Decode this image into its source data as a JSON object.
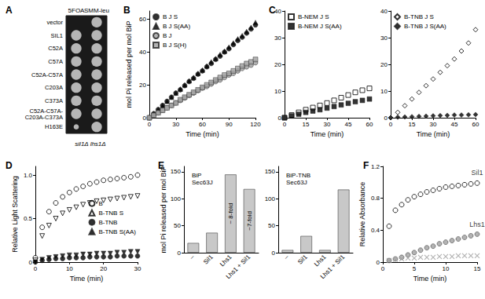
{
  "chart_data": [
    {
      "type": "heatmap",
      "title": "A",
      "x": [
        "5FOA",
        "SMM-leu"
      ],
      "categories": [
        "vector",
        "SIL1",
        "C52A",
        "C57A",
        "C52A-C57A",
        "C203A",
        "C373A",
        "C52A-C57A-\nC203A-C373A",
        "H163E"
      ],
      "cells": [
        [
          0,
          1
        ],
        [
          1,
          1
        ],
        [
          1,
          1
        ],
        [
          1,
          1
        ],
        [
          1,
          1
        ],
        [
          1,
          1
        ],
        [
          1,
          1
        ],
        [
          1,
          1
        ],
        [
          0.5,
          1
        ]
      ],
      "xlabel": "sil1Δ lhs1Δ",
      "color": "#dddddd"
    },
    {
      "type": "scatter",
      "title": "B",
      "xlabel": "Time (min)",
      "ylabel": "mol Pi released per mol BiP",
      "x": [
        0,
        5,
        10,
        15,
        20,
        25,
        30,
        35,
        40,
        45,
        50,
        55,
        60,
        65,
        70,
        75,
        80,
        85,
        90,
        95,
        100,
        105,
        110,
        115,
        120
      ],
      "xlim": [
        0,
        120
      ],
      "xticks": [
        0,
        30,
        60,
        90,
        120
      ],
      "ylim": [
        0,
        65
      ],
      "yticks": [
        0,
        20,
        40,
        60
      ],
      "legend": "upper left",
      "series": [
        {
          "name": "B J S",
          "color": "#000000",
          "marker": "circle",
          "values": [
            0,
            2.5,
            5,
            7.5,
            10,
            12.5,
            15,
            17,
            19.5,
            22,
            24,
            26.5,
            28.5,
            31,
            33,
            35.5,
            37.5,
            40,
            42,
            44.5,
            47,
            49,
            51.5,
            54,
            56.5
          ]
        },
        {
          "name": "B J S(AA)",
          "color": "#000000",
          "marker": "triangle",
          "values": [
            0,
            2.5,
            5,
            7.5,
            10,
            12.5,
            15,
            17.5,
            20,
            22.5,
            24.5,
            27,
            29,
            31.5,
            34,
            36,
            38.5,
            40.5,
            43,
            45.5,
            48,
            50,
            52.5,
            55,
            58
          ]
        },
        {
          "name": "B J",
          "color": "#a0a0a0",
          "marker": "circle",
          "values": [
            0,
            1.5,
            3,
            4.5,
            6,
            7.5,
            9,
            10.5,
            12,
            13.5,
            15,
            16.5,
            18,
            19,
            20.5,
            22,
            23,
            24.5,
            26,
            27,
            28.5,
            30,
            31,
            32,
            33.5
          ]
        },
        {
          "name": "B J S(H)",
          "color": "#a0a0a0",
          "marker": "square",
          "values": [
            0,
            1.5,
            3,
            4.5,
            6,
            7.5,
            9,
            11,
            12.5,
            14,
            15.5,
            17,
            18.5,
            20,
            21.5,
            23,
            24.5,
            26,
            27,
            28.5,
            30,
            31.5,
            33,
            34,
            35.5
          ]
        }
      ]
    },
    {
      "type": "scatter",
      "title": "C",
      "xlabel": "Time (min)",
      "x": [
        0,
        5,
        10,
        15,
        20,
        25,
        30,
        35,
        40,
        45,
        50,
        55,
        60
      ],
      "xlim": [
        0,
        60
      ],
      "xticks": [
        0,
        15,
        30,
        45,
        60
      ],
      "ylim": [
        0,
        40
      ],
      "yticks": [
        0,
        10,
        20,
        30,
        40
      ],
      "legend": "upper left",
      "series": [
        {
          "name": "B-NEM J S",
          "color": "#000000",
          "marker": "square-open",
          "values": [
            0,
            1,
            2,
            3,
            3.8,
            4.6,
            5.5,
            6.5,
            7.5,
            8.5,
            9.5,
            10.3,
            11
          ]
        },
        {
          "name": "B-NEM J S(AA)",
          "color": "#000000",
          "marker": "square",
          "values": [
            0,
            0.7,
            1.3,
            2,
            2.5,
            3,
            3.6,
            4.2,
            4.8,
            5.4,
            6,
            6.5,
            7
          ]
        }
      ]
    },
    {
      "type": "scatter",
      "xlabel": "Time (min)",
      "x": [
        0,
        5,
        10,
        15,
        20,
        25,
        30,
        35,
        40,
        45,
        50,
        55,
        60
      ],
      "xlim": [
        0,
        60
      ],
      "xticks": [
        0,
        15,
        30,
        45,
        60
      ],
      "ylim": [
        0,
        40
      ],
      "yticks": [
        0,
        10,
        20,
        30,
        40
      ],
      "legend": "upper left",
      "series": [
        {
          "name": "B-TNB J S",
          "color": "#000000",
          "marker": "diamond-open",
          "values": [
            0,
            2,
            4.5,
            7,
            9.5,
            12,
            14.5,
            17,
            19.5,
            22,
            25,
            28,
            33
          ]
        },
        {
          "name": "B-TNB J S(AA)",
          "color": "#000000",
          "marker": "diamond",
          "values": [
            0,
            0.2,
            0.3,
            0.4,
            0.5,
            0.6,
            0.7,
            0.8,
            0.9,
            1,
            1,
            1.1,
            1.2
          ]
        }
      ]
    },
    {
      "type": "scatter",
      "title": "D",
      "xlabel": "Time (min)",
      "ylabel": "Relative Light Scattering",
      "x": [
        0,
        2,
        4,
        6,
        8,
        10,
        12,
        14,
        16,
        18,
        20,
        22,
        24,
        26,
        28,
        30
      ],
      "xlim": [
        0,
        30
      ],
      "xticks": [
        0,
        10,
        20,
        30
      ],
      "ylim": [
        0,
        1.1
      ],
      "yticks": [
        0,
        0.5,
        {
          "value": 1,
          "label": "1.0"
        }
      ],
      "legend": "right",
      "series": [
        {
          "name": "B",
          "color": "#000000",
          "marker": "circle-open",
          "values": [
            0.05,
            0.4,
            0.58,
            0.68,
            0.75,
            0.8,
            0.84,
            0.87,
            0.9,
            0.92,
            0.94,
            0.95,
            0.96,
            0.97,
            0.98,
            1.0
          ]
        },
        {
          "name": "B-TNB S",
          "color": "#000000",
          "marker": "triangle-down-open",
          "values": [
            0.02,
            0.3,
            0.42,
            0.5,
            0.56,
            0.6,
            0.63,
            0.66,
            0.68,
            0.7,
            0.71,
            0.72,
            0.73,
            0.74,
            0.75,
            0.76
          ]
        },
        {
          "name": "B-TNB",
          "color": "#000000",
          "marker": "circle",
          "values": [
            0,
            0.02,
            0.03,
            0.04,
            0.04,
            0.05,
            0.05,
            0.05,
            0.06,
            0.06,
            0.06,
            0.06,
            0.07,
            0.07,
            0.07,
            0.07
          ]
        },
        {
          "name": "B-TNB S(AA)",
          "color": "#000000",
          "marker": "triangle-down",
          "values": [
            0,
            0.03,
            0.05,
            0.06,
            0.07,
            0.08,
            0.08,
            0.09,
            0.09,
            0.1,
            0.1,
            0.1,
            0.11,
            0.11,
            0.12,
            0.12
          ]
        }
      ]
    },
    {
      "type": "bar",
      "title": "E",
      "subtitle": "BiP\nSec63J",
      "ylabel": "mol Pi released per mol BiP",
      "categories": [
        "–",
        "Sil1",
        "Lhs1",
        "Lhs1 + Sil1"
      ],
      "values": [
        18,
        37,
        145,
        118
      ],
      "color": "#c8c8c8",
      "ylim": [
        0,
        160
      ],
      "yticks": [
        0,
        50,
        100,
        150
      ],
      "annotations": [
        {
          "category": "Lhs1",
          "text": "~ 8-fold"
        },
        {
          "category": "Lhs1 + Sil1",
          "text": "~7-fold"
        }
      ]
    },
    {
      "type": "bar",
      "subtitle": "BiP-TNB\nSec63J",
      "categories": [
        "–",
        "Sil1",
        "Lhs1",
        "Lhs1 + Sil1"
      ],
      "values": [
        5,
        31,
        5,
        117
      ],
      "color": "#c8c8c8",
      "ylim": [
        0,
        160
      ],
      "yticks": [
        0,
        50,
        100,
        150
      ]
    },
    {
      "type": "scatter",
      "title": "F",
      "xlabel": "Time (min)",
      "ylabel": "Relative Absorbance",
      "x": [
        1,
        2,
        3,
        4,
        5,
        6,
        7,
        8,
        9,
        10,
        11,
        12,
        13,
        14,
        15
      ],
      "xlim": [
        0,
        15
      ],
      "xticks": [
        0,
        5,
        10,
        15
      ],
      "ylim": [
        0,
        1.2
      ],
      "yticks": [
        0,
        0.4,
        0.8,
        1.2
      ],
      "series": [
        {
          "name": "Sil1",
          "color": "#000000",
          "marker": "circle-open",
          "values": [
            0.45,
            0.65,
            0.72,
            0.78,
            0.82,
            0.85,
            0.88,
            0.9,
            0.92,
            0.94,
            0.95,
            0.96,
            0.97,
            0.98,
            0.99
          ]
        },
        {
          "name": "Lhs1",
          "color": "#a0a0a0",
          "marker": "circle",
          "values": [
            0.02,
            0.04,
            0.06,
            0.09,
            0.12,
            0.15,
            0.18,
            0.2,
            0.23,
            0.25,
            0.27,
            0.29,
            0.31,
            0.33,
            0.35
          ]
        },
        {
          "color": "#a0a0a0",
          "marker": "x",
          "values": [
            0.02,
            0.03,
            0.04,
            0.05,
            0.05,
            0.06,
            0.06,
            0.06,
            0.07,
            0.07,
            0.07,
            0.08,
            0.08,
            0.08,
            0.08
          ]
        }
      ]
    }
  ]
}
